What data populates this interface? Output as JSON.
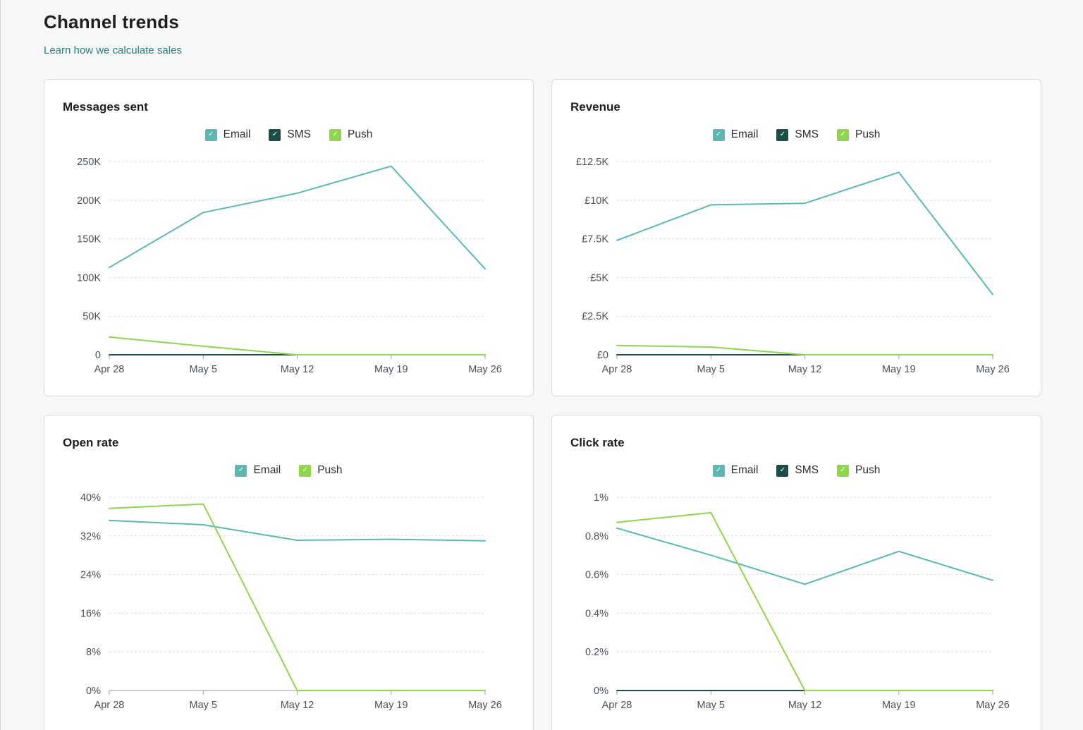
{
  "page": {
    "title": "Channel trends",
    "link": "Learn how we calculate sales"
  },
  "colors": {
    "email": "#5cb8b2",
    "sms": "#1b4d4a",
    "push": "#8fd64d"
  },
  "charts": [
    {
      "title": "Messages sent",
      "legend": [
        {
          "key": "email",
          "label": "Email"
        },
        {
          "key": "sms",
          "label": "SMS"
        },
        {
          "key": "push",
          "label": "Push"
        }
      ],
      "chart_data": {
        "type": "line",
        "x": [
          "Apr 28",
          "May 5",
          "May 12",
          "May 19",
          "May 26"
        ],
        "ylim": [
          0,
          250000
        ],
        "yticks": [
          0,
          50000,
          100000,
          150000,
          200000,
          250000
        ],
        "ytick_labels": [
          "0",
          "50K",
          "100K",
          "150K",
          "200K",
          "250K"
        ],
        "grid": true,
        "legend_position": "top-center",
        "series": [
          {
            "name": "Email",
            "key": "email",
            "values": [
              113000,
              184000,
              209000,
              244000,
              111000
            ]
          },
          {
            "name": "SMS",
            "key": "sms",
            "values": [
              0,
              0,
              0,
              0,
              0
            ]
          },
          {
            "name": "Push",
            "key": "push",
            "values": [
              23000,
              11000,
              0,
              0,
              0
            ]
          }
        ]
      }
    },
    {
      "title": "Revenue",
      "legend": [
        {
          "key": "email",
          "label": "Email"
        },
        {
          "key": "sms",
          "label": "SMS"
        },
        {
          "key": "push",
          "label": "Push"
        }
      ],
      "chart_data": {
        "type": "line",
        "x": [
          "Apr 28",
          "May 5",
          "May 12",
          "May 19",
          "May 26"
        ],
        "ylim": [
          0,
          12500
        ],
        "yticks": [
          0,
          2500,
          5000,
          7500,
          10000,
          12500
        ],
        "ytick_labels": [
          "£0",
          "£2.5K",
          "£5K",
          "£7.5K",
          "£10K",
          "£12.5K"
        ],
        "grid": true,
        "legend_position": "top-center",
        "series": [
          {
            "name": "Email",
            "key": "email",
            "values": [
              7400,
              9700,
              9800,
              11800,
              3900
            ]
          },
          {
            "name": "SMS",
            "key": "sms",
            "values": [
              0,
              0,
              0,
              0,
              0
            ]
          },
          {
            "name": "Push",
            "key": "push",
            "values": [
              600,
              500,
              0,
              0,
              0
            ]
          }
        ]
      }
    },
    {
      "title": "Open rate",
      "legend": [
        {
          "key": "email",
          "label": "Email"
        },
        {
          "key": "push",
          "label": "Push"
        }
      ],
      "chart_data": {
        "type": "line",
        "x": [
          "Apr 28",
          "May 5",
          "May 12",
          "May 19",
          "May 26"
        ],
        "ylim": [
          0,
          40
        ],
        "yticks": [
          0,
          8,
          16,
          24,
          32,
          40
        ],
        "ytick_labels": [
          "0%",
          "8%",
          "16%",
          "24%",
          "32%",
          "40%"
        ],
        "grid": true,
        "legend_position": "top-center",
        "series": [
          {
            "name": "Email",
            "key": "email",
            "values": [
              35.2,
              34.3,
              31.1,
              31.3,
              31.0
            ]
          },
          {
            "name": "Push",
            "key": "push",
            "values": [
              37.7,
              38.6,
              0,
              0,
              0
            ]
          }
        ]
      }
    },
    {
      "title": "Click rate",
      "legend": [
        {
          "key": "email",
          "label": "Email"
        },
        {
          "key": "sms",
          "label": "SMS"
        },
        {
          "key": "push",
          "label": "Push"
        }
      ],
      "chart_data": {
        "type": "line",
        "x": [
          "Apr 28",
          "May 5",
          "May 12",
          "May 19",
          "May 26"
        ],
        "ylim": [
          0,
          1
        ],
        "yticks": [
          0,
          0.2,
          0.4,
          0.6,
          0.8,
          1
        ],
        "ytick_labels": [
          "0%",
          "0.2%",
          "0.4%",
          "0.6%",
          "0.8%",
          "1%"
        ],
        "grid": true,
        "legend_position": "top-center",
        "series": [
          {
            "name": "Email",
            "key": "email",
            "values": [
              0.84,
              0.7,
              0.55,
              0.72,
              0.57
            ]
          },
          {
            "name": "SMS",
            "key": "sms",
            "values": [
              0,
              0,
              0,
              0,
              0
            ]
          },
          {
            "name": "Push",
            "key": "push",
            "values": [
              0.87,
              0.92,
              0,
              0,
              0
            ]
          }
        ]
      }
    }
  ]
}
